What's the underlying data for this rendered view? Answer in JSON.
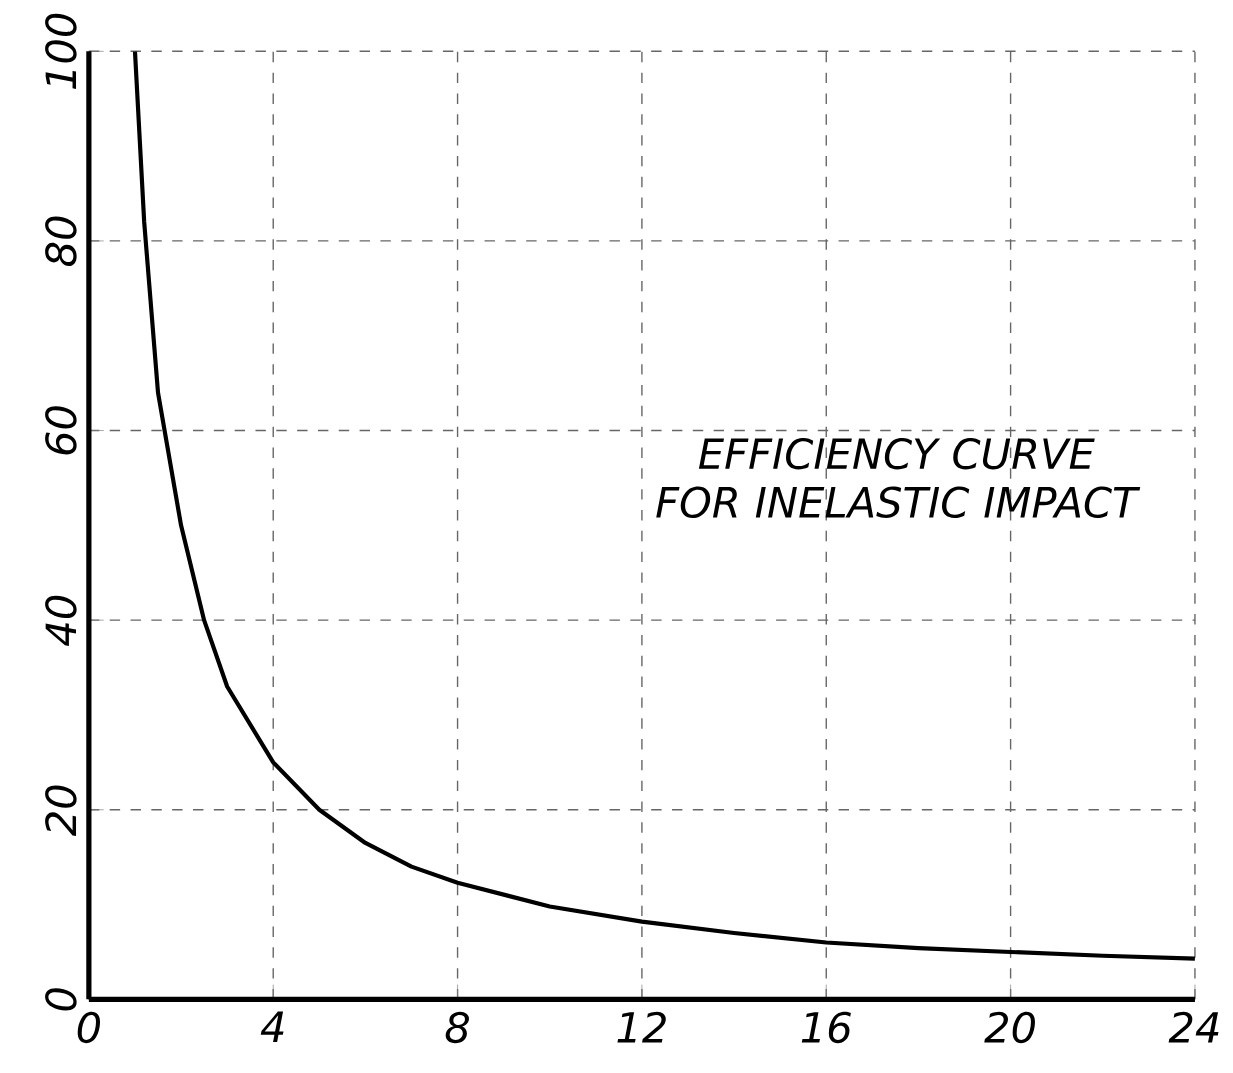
{
  "chart_data": {
    "type": "line",
    "annotations": [
      "EFFICIENCY CURVE FOR INELASTIC IMPACT"
    ],
    "x": [
      1,
      1.2,
      1.5,
      2,
      2.5,
      3,
      4,
      5,
      6,
      7,
      8,
      10,
      12,
      14,
      16,
      18,
      20,
      22,
      24
    ],
    "values": [
      100,
      82,
      64,
      50,
      40,
      33,
      25,
      20,
      16.5,
      14,
      12.3,
      9.8,
      8.2,
      7,
      6,
      5.4,
      5,
      4.6,
      4.3
    ],
    "color": "#000000",
    "xlim": [
      0,
      24
    ],
    "ylim": [
      0,
      100
    ],
    "xticks": [
      0,
      4,
      8,
      12,
      16,
      20,
      24
    ],
    "yticks": [
      0,
      20,
      40,
      60,
      80,
      100
    ],
    "grid": true,
    "line_style": "solid"
  }
}
